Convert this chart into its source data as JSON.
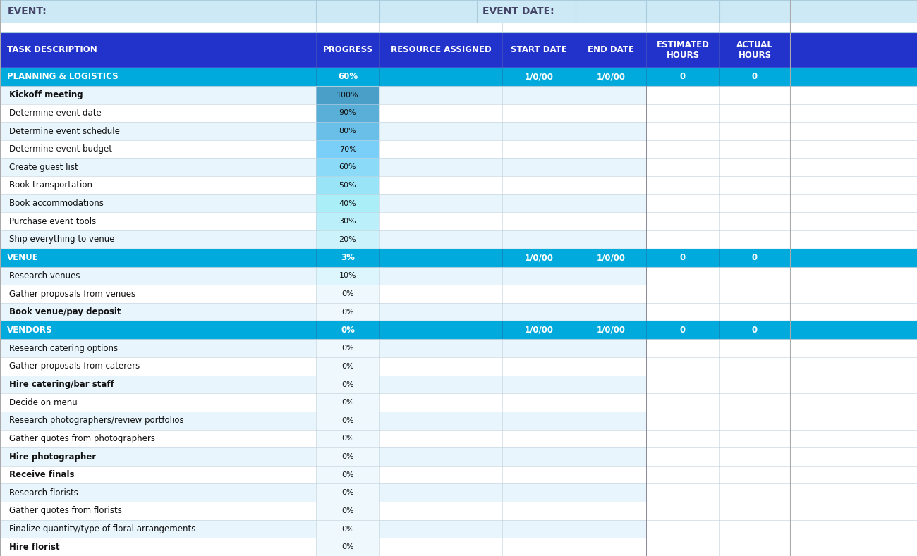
{
  "title_row": {
    "event_label": "EVENT:",
    "event_date_label": "EVENT DATE:",
    "bg_color": "#cce9f5"
  },
  "header_row": {
    "columns": [
      "TASK DESCRIPTION",
      "PROGRESS",
      "RESOURCE ASSIGNED",
      "START DATE",
      "END DATE",
      "ESTIMATED\nHOURS",
      "ACTUAL\nHOURS"
    ],
    "bg_color": "#2233cc",
    "text_color": "#ffffff"
  },
  "sections": [
    {
      "name": "PLANNING & LOGISTICS",
      "progress": "60%",
      "start_date": "1/0/00",
      "end_date": "1/0/00",
      "est_hours": "0",
      "act_hours": "0",
      "section_bg": "#00aadd",
      "tasks": [
        {
          "name": "Kickoff meeting",
          "progress": "100%",
          "bold": true
        },
        {
          "name": "Determine event date",
          "progress": "90%",
          "bold": false
        },
        {
          "name": "Determine event schedule",
          "progress": "80%",
          "bold": false
        },
        {
          "name": "Determine event budget",
          "progress": "70%",
          "bold": false
        },
        {
          "name": "Create guest list",
          "progress": "60%",
          "bold": false
        },
        {
          "name": "Book transportation",
          "progress": "50%",
          "bold": false
        },
        {
          "name": "Book accommodations",
          "progress": "40%",
          "bold": false
        },
        {
          "name": "Purchase event tools",
          "progress": "30%",
          "bold": false
        },
        {
          "name": "Ship everything to venue",
          "progress": "20%",
          "bold": false
        }
      ]
    },
    {
      "name": "VENUE",
      "progress": "3%",
      "start_date": "1/0/00",
      "end_date": "1/0/00",
      "est_hours": "0",
      "act_hours": "0",
      "section_bg": "#00aadd",
      "tasks": [
        {
          "name": "Research venues",
          "progress": "10%",
          "bold": false
        },
        {
          "name": "Gather proposals from venues",
          "progress": "0%",
          "bold": false
        },
        {
          "name": "Book venue/pay deposit",
          "progress": "0%",
          "bold": true
        }
      ]
    },
    {
      "name": "VENDORS",
      "progress": "0%",
      "start_date": "1/0/00",
      "end_date": "1/0/00",
      "est_hours": "0",
      "act_hours": "0",
      "section_bg": "#00aadd",
      "tasks": [
        {
          "name": "Research catering options",
          "progress": "0%",
          "bold": false
        },
        {
          "name": "Gather proposals from caterers",
          "progress": "0%",
          "bold": false
        },
        {
          "name": "Hire catering/bar staff",
          "progress": "0%",
          "bold": true
        },
        {
          "name": "Decide on menu",
          "progress": "0%",
          "bold": false
        },
        {
          "name": "Research photographers/review portfolios",
          "progress": "0%",
          "bold": false
        },
        {
          "name": "Gather quotes from photographers",
          "progress": "0%",
          "bold": false
        },
        {
          "name": "Hire photographer",
          "progress": "0%",
          "bold": true
        },
        {
          "name": "Receive finals",
          "progress": "0%",
          "bold": true
        },
        {
          "name": "Research florists",
          "progress": "0%",
          "bold": false
        },
        {
          "name": "Gather quotes from florists",
          "progress": "0%",
          "bold": false
        },
        {
          "name": "Finalize quantity/type of floral arrangements",
          "progress": "0%",
          "bold": false
        },
        {
          "name": "Hire florist",
          "progress": "0%",
          "bold": true
        }
      ]
    }
  ],
  "progress_colors": {
    "100": "#4a9fc8",
    "90": "#5aafd8",
    "80": "#6abfe8",
    "70": "#7acff8",
    "60": "#8adaf8",
    "50": "#9ae4f8",
    "40": "#aaeef8",
    "30": "#bbf0fb",
    "20": "#ccf2fb",
    "10": "#ddf5fc",
    "0": "#eef8fd"
  },
  "task_bg_even": "#e8f5fc",
  "task_bg_odd": "#ffffff",
  "grid_color": "#c0d0da",
  "task_text_color": "#111111",
  "fig_width": 13.0,
  "fig_height": 7.89
}
